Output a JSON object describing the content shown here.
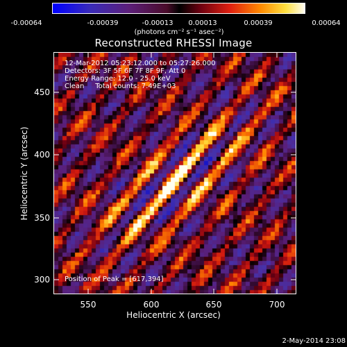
{
  "colorbar": {
    "ticks": [
      "-0.00064",
      "-0.00039",
      "-0.00013",
      "0.00013",
      "0.00039",
      "0.00064"
    ],
    "units": "(photons cm⁻² s⁻¹ asec⁻²)"
  },
  "plot": {
    "title": "Reconstructed RHESSI Image",
    "annotations": {
      "line1": "12-Mar-2012 05:23:12.000 to 05:27:26.000",
      "line2": "Detectors: 3F 5F 6F 7F 8F 9F, Att 0",
      "line3": "Energy Range: 12.0 - 25.0 keV",
      "line4": "Clean     Total counts: 7.49E+03"
    },
    "peak_label": "Position of Peak = [617,394]",
    "x_axis": {
      "title": "Heliocentric X (arcsec)",
      "ticks": [
        "550",
        "600",
        "650",
        "700"
      ]
    },
    "y_axis": {
      "title": "Heliocentric Y (arcsec)",
      "ticks": [
        "300",
        "350",
        "400",
        "450"
      ]
    }
  },
  "timestamp": "2-May-2014 23:08"
}
